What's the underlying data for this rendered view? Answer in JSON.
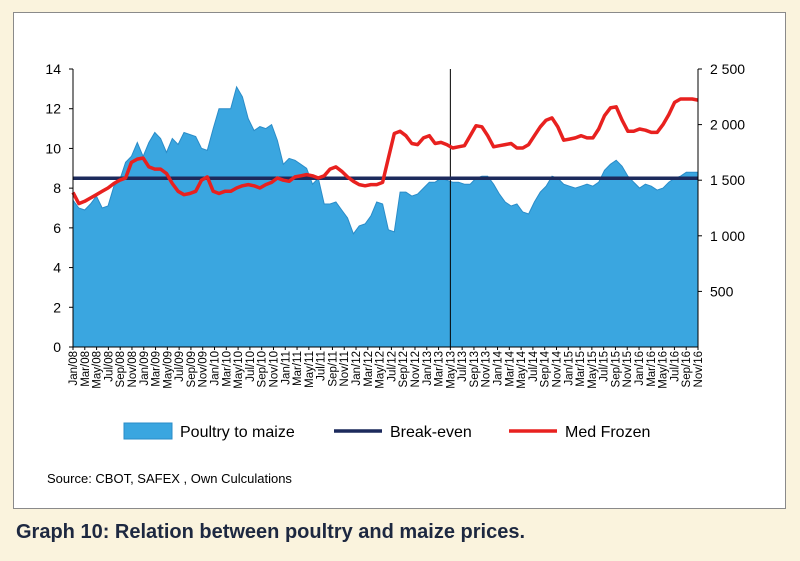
{
  "caption": "Graph 10: Relation between poultry and maize prices.",
  "source": "Source: CBOT, SAFEX , Own Culculations",
  "colors": {
    "area": "#3aa6e0",
    "area_edge": "#2a8cc8",
    "breakeven": "#1c2a5c",
    "frozen": "#e8211f",
    "page_bg": "#faf3dd",
    "caption": "#1d2840"
  },
  "chart_data": {
    "type": "area",
    "title": "",
    "xlabel": "",
    "ylabel": "",
    "ylim": [
      0,
      14
    ],
    "y_ticks": [
      "0",
      "2",
      "4",
      "6",
      "8",
      "10",
      "12",
      "14"
    ],
    "y2lim": [
      0,
      2500
    ],
    "y2_ticks": [
      "500",
      "1 000",
      "1 500",
      "2 000",
      "2 500"
    ],
    "x_start": "Jan/08",
    "x_end": "Dec/16",
    "x_tick_labels": [
      "Jan/08",
      "Mar/08",
      "May/08",
      "Jul/08",
      "Sep/08",
      "Nov/08",
      "Jan/09",
      "Mar/09",
      "May/09",
      "Jul/09",
      "Sep/09",
      "Nov/09",
      "Jan/10",
      "Mar/10",
      "May/10",
      "Jul/10",
      "Sep/10",
      "Nov/10",
      "Jan/11",
      "Mar/11",
      "May/11",
      "Jul/11",
      "Sep/11",
      "Nov/11",
      "Jan/12",
      "Mar/12",
      "May/12",
      "Jul/12",
      "Sep/12",
      "Nov/12",
      "Jan/13",
      "Mar/13",
      "May/13",
      "Jul/13",
      "Sep/13",
      "Nov/13",
      "Jan/14",
      "Mar/14",
      "May/14",
      "Jul/14",
      "Sep/14",
      "Nov/14",
      "Jan/15",
      "Mar/15",
      "May/15",
      "Jul/15",
      "Sep/15",
      "Nov/15",
      "Jan/16",
      "Mar/16",
      "May/16",
      "Jul/16",
      "Sep/16",
      "Nov/16"
    ],
    "marker_line_at": "May/13",
    "legend": [
      "Poultry to maize",
      "Break-even",
      "Med Frozen"
    ],
    "series": [
      {
        "name": "Poultry to maize",
        "axis": "left",
        "kind": "area",
        "values": [
          7.4,
          7.0,
          6.9,
          7.2,
          7.6,
          7.0,
          7.1,
          8.1,
          8.4,
          9.3,
          9.6,
          10.3,
          9.6,
          10.3,
          10.8,
          10.5,
          9.8,
          10.5,
          10.2,
          10.8,
          10.7,
          10.6,
          10.0,
          9.9,
          11.0,
          12.0,
          12.0,
          12.0,
          13.1,
          12.6,
          11.5,
          10.9,
          11.1,
          11.0,
          11.2,
          10.4,
          9.2,
          9.5,
          9.4,
          9.2,
          9.0,
          8.2,
          8.5,
          7.2,
          7.2,
          7.3,
          6.9,
          6.5,
          5.7,
          6.1,
          6.2,
          6.6,
          7.3,
          7.2,
          5.9,
          5.8,
          7.8,
          7.8,
          7.6,
          7.7,
          8.0,
          8.3,
          8.3,
          8.5,
          8.4,
          8.3,
          8.3,
          8.2,
          8.2,
          8.5,
          8.6,
          8.6,
          8.2,
          7.7,
          7.3,
          7.1,
          7.2,
          6.8,
          6.7,
          7.3,
          7.8,
          8.1,
          8.6,
          8.5,
          8.2,
          8.1,
          8.0,
          8.1,
          8.2,
          8.1,
          8.3,
          8.9,
          9.2,
          9.4,
          9.1,
          8.6,
          8.3,
          8.0,
          8.2,
          8.1,
          7.9,
          8.0,
          8.3,
          8.5,
          8.6,
          8.8,
          8.8,
          8.8
        ]
      },
      {
        "name": "Break-even",
        "axis": "left",
        "kind": "line",
        "values": [
          8.5
        ]
      },
      {
        "name": "Med Frozen",
        "axis": "right",
        "kind": "line",
        "values": [
          1390,
          1290,
          1310,
          1340,
          1370,
          1400,
          1430,
          1470,
          1500,
          1520,
          1660,
          1690,
          1700,
          1620,
          1600,
          1600,
          1560,
          1470,
          1400,
          1370,
          1380,
          1400,
          1500,
          1530,
          1400,
          1380,
          1400,
          1400,
          1430,
          1450,
          1460,
          1450,
          1430,
          1460,
          1480,
          1520,
          1500,
          1490,
          1530,
          1540,
          1550,
          1540,
          1520,
          1540,
          1600,
          1620,
          1580,
          1530,
          1490,
          1460,
          1450,
          1460,
          1460,
          1480,
          1700,
          1920,
          1940,
          1900,
          1830,
          1820,
          1880,
          1900,
          1830,
          1840,
          1820,
          1790,
          1800,
          1810,
          1900,
          1990,
          1980,
          1900,
          1800,
          1810,
          1820,
          1830,
          1790,
          1790,
          1820,
          1900,
          1980,
          2040,
          2060,
          1980,
          1860,
          1870,
          1880,
          1900,
          1880,
          1880,
          1960,
          2080,
          2150,
          2160,
          2040,
          1940,
          1940,
          1960,
          1950,
          1930,
          1930,
          2000,
          2090,
          2200,
          2230,
          2230,
          2230,
          2220
        ]
      }
    ]
  }
}
